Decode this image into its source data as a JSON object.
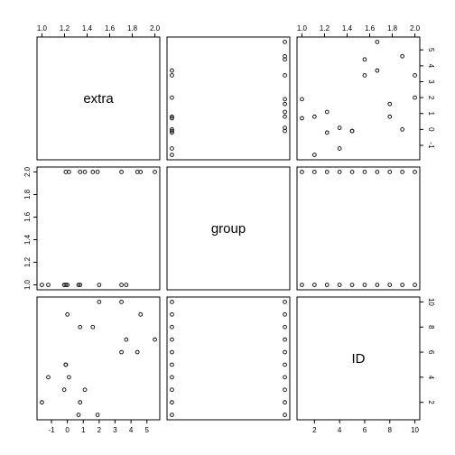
{
  "chart_data": {
    "type": "scatter",
    "title": "",
    "variables": [
      "extra",
      "group",
      "ID"
    ],
    "axes": {
      "extra": {
        "range": [
          -1.6,
          5.5
        ],
        "ticks": [
          -1,
          0,
          1,
          2,
          3,
          4,
          5
        ],
        "tick_labels": [
          "-1",
          "0",
          "1",
          "2",
          "3",
          "4",
          "5"
        ]
      },
      "group": {
        "range": [
          1,
          2
        ],
        "ticks": [
          1.0,
          1.2,
          1.4,
          1.6,
          1.8,
          2.0
        ],
        "tick_labels": [
          "1.0",
          "1.2",
          "1.4",
          "1.6",
          "1.8",
          "2.0"
        ]
      },
      "ID": {
        "range": [
          1,
          10
        ],
        "ticks": [
          2,
          4,
          6,
          8,
          10
        ],
        "tick_labels": [
          "2",
          "4",
          "6",
          "8",
          "10"
        ]
      }
    },
    "tick_sides": {
      "top": [
        "group",
        "",
        "group",
        "",
        ""
      ],
      "right": [
        "extra",
        "",
        "ID"
      ],
      "bottom": [
        "extra",
        "",
        "ID"
      ],
      "left": [
        "",
        "group",
        ""
      ]
    },
    "tick_sides_note": "",
    "points": {
      "extra": [
        0.7,
        -1.6,
        -0.2,
        -1.2,
        -0.1,
        3.4,
        3.7,
        0.8,
        0.0,
        2.0,
        1.9,
        0.8,
        1.1,
        0.1,
        -0.1,
        4.4,
        5.5,
        1.6,
        4.6,
        3.4
      ],
      "group": [
        1,
        1,
        1,
        1,
        1,
        1,
        1,
        1,
        1,
        1,
        2,
        2,
        2,
        2,
        2,
        2,
        2,
        2,
        2,
        2
      ],
      "ID": [
        1,
        2,
        3,
        4,
        5,
        6,
        7,
        8,
        9,
        10,
        1,
        2,
        3,
        4,
        5,
        6,
        7,
        8,
        9,
        10
      ]
    },
    "grid": false,
    "legend": "none"
  }
}
